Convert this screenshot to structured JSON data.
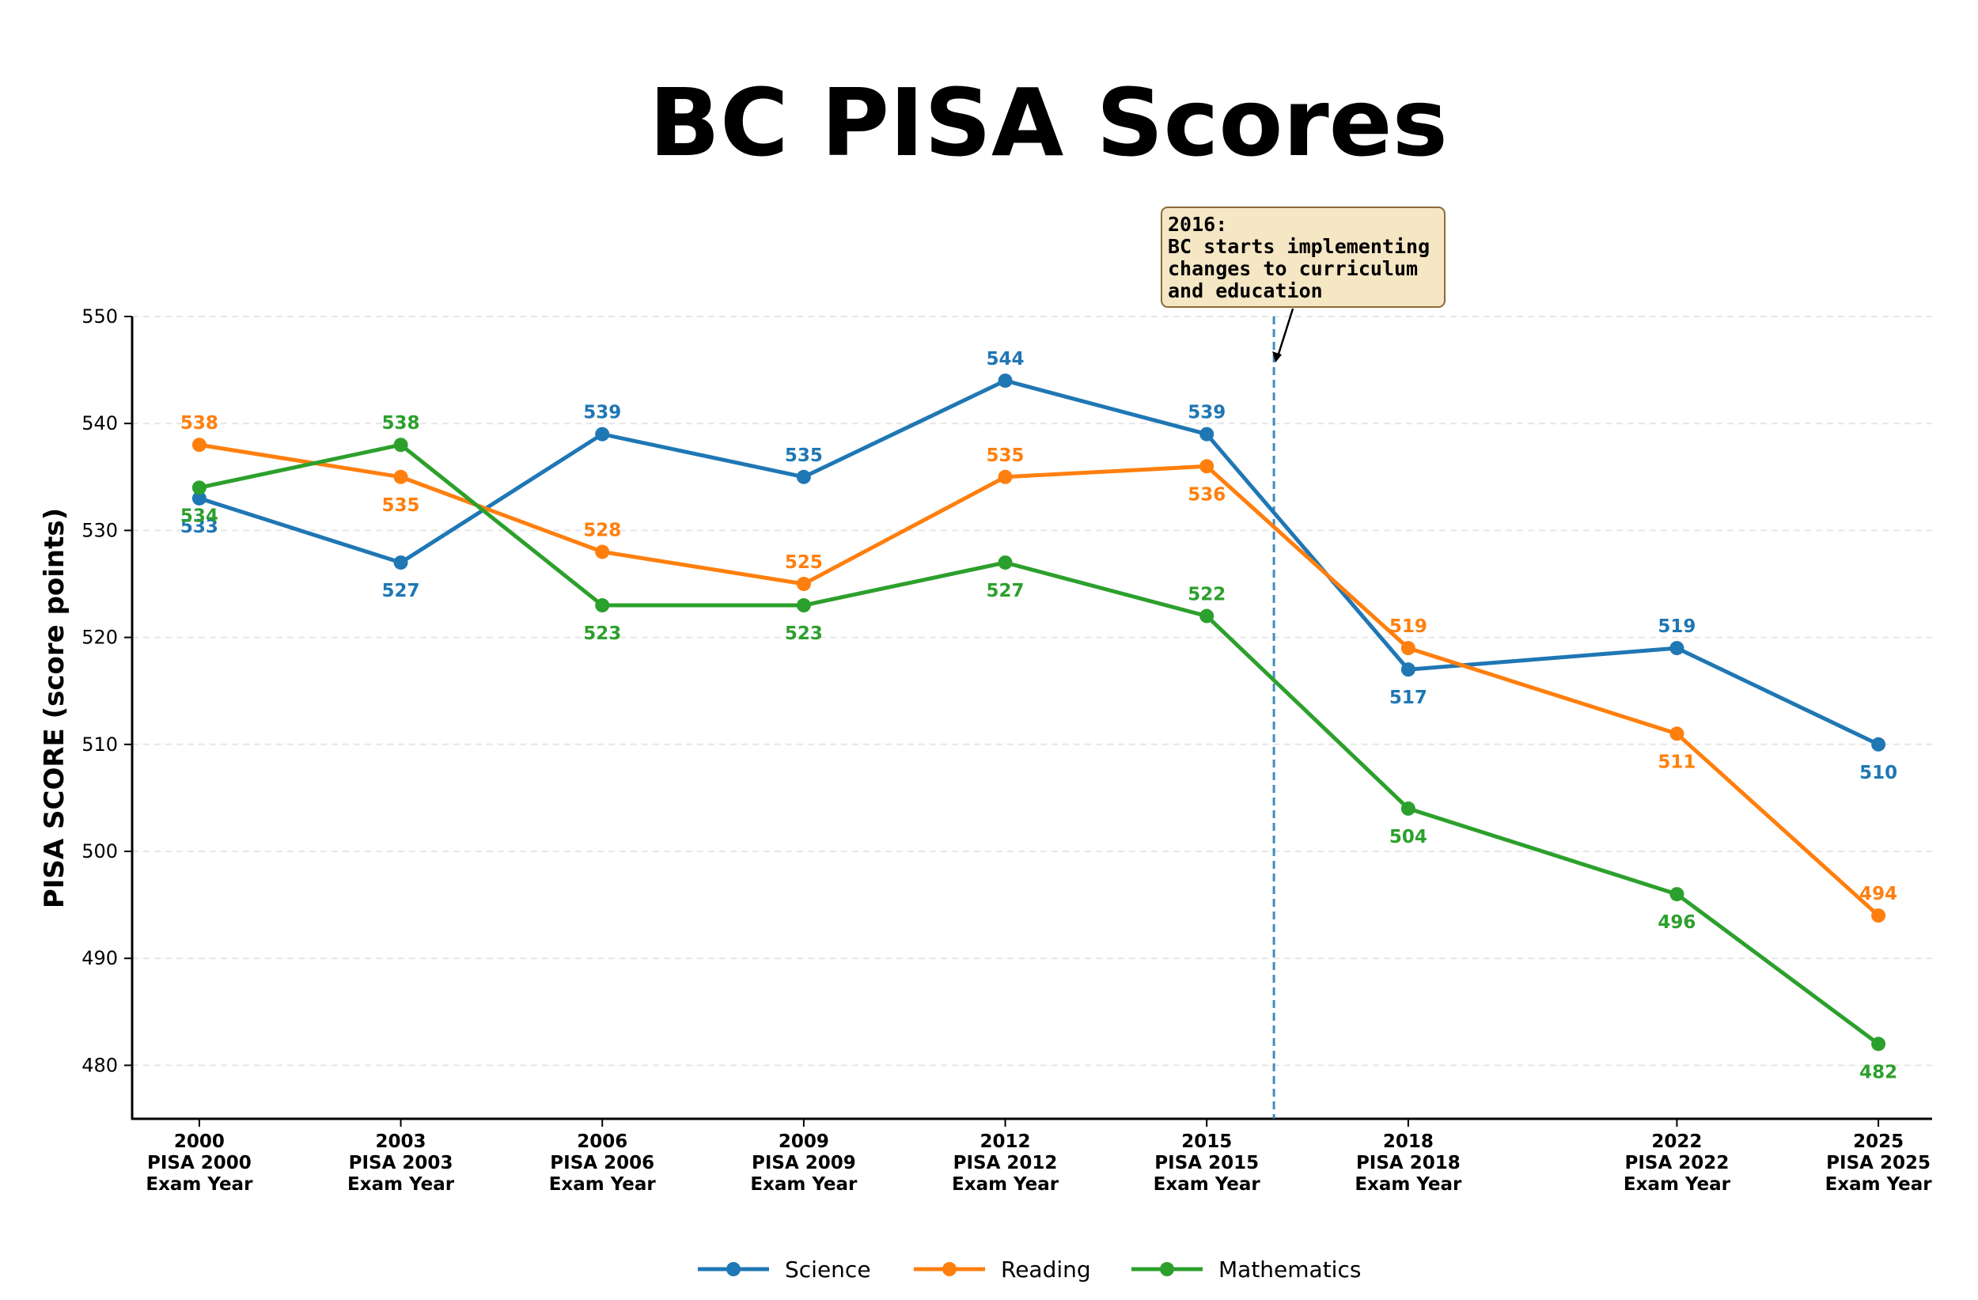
{
  "chart_data": {
    "type": "line",
    "title": "BC PISA Scores",
    "ylabel": "PISA SCORE (score points)",
    "xlabel": "",
    "ylim": [
      475,
      550
    ],
    "yticks": [
      480,
      490,
      500,
      510,
      520,
      530,
      540,
      550
    ],
    "grid": "horizontal dashed",
    "legend_position": "bottom-center",
    "x": [
      2000,
      2003,
      2006,
      2009,
      2012,
      2015,
      2018,
      2022,
      2025
    ],
    "x_tick_labels": [
      [
        "2000",
        "PISA 2000",
        "Exam Year"
      ],
      [
        "2003",
        "PISA 2003",
        "Exam Year"
      ],
      [
        "2006",
        "PISA 2006",
        "Exam Year"
      ],
      [
        "2009",
        "PISA 2009",
        "Exam Year"
      ],
      [
        "2012",
        "PISA 2012",
        "Exam Year"
      ],
      [
        "2015",
        "PISA 2015",
        "Exam Year"
      ],
      [
        "2018",
        "PISA 2018",
        "Exam Year"
      ],
      [
        "2022",
        "PISA 2022",
        "Exam Year"
      ],
      [
        "2025",
        "PISA 2025",
        "Exam Year"
      ]
    ],
    "series": [
      {
        "name": "Science",
        "color": "#1f77b4",
        "values": [
          533,
          527,
          539,
          535,
          544,
          539,
          517,
          519,
          510
        ],
        "label_position": [
          "below",
          "below",
          "above",
          "above",
          "above",
          "above",
          "below",
          "above",
          "below"
        ]
      },
      {
        "name": "Reading",
        "color": "#ff7f0e",
        "values": [
          538,
          535,
          528,
          525,
          535,
          536,
          519,
          511,
          494
        ],
        "label_position": [
          "above",
          "below",
          "above",
          "above",
          "above",
          "below",
          "above",
          "below",
          "above"
        ]
      },
      {
        "name": "Mathematics",
        "color": "#2ca02c",
        "values": [
          534,
          538,
          523,
          523,
          527,
          522,
          504,
          496,
          482
        ],
        "label_position": [
          "below",
          "above",
          "below",
          "below",
          "below",
          "above",
          "below",
          "below",
          "below"
        ]
      }
    ],
    "vline": {
      "x": 2016,
      "color": "#1f77b4"
    },
    "annotation": {
      "lines": [
        "2016:",
        "BC starts implementing",
        "changes to curriculum",
        "and education"
      ],
      "target_x": 2016,
      "target_y": 545.7,
      "box_fill": "#f5e6c4",
      "box_stroke": "#8b6a3a"
    }
  }
}
